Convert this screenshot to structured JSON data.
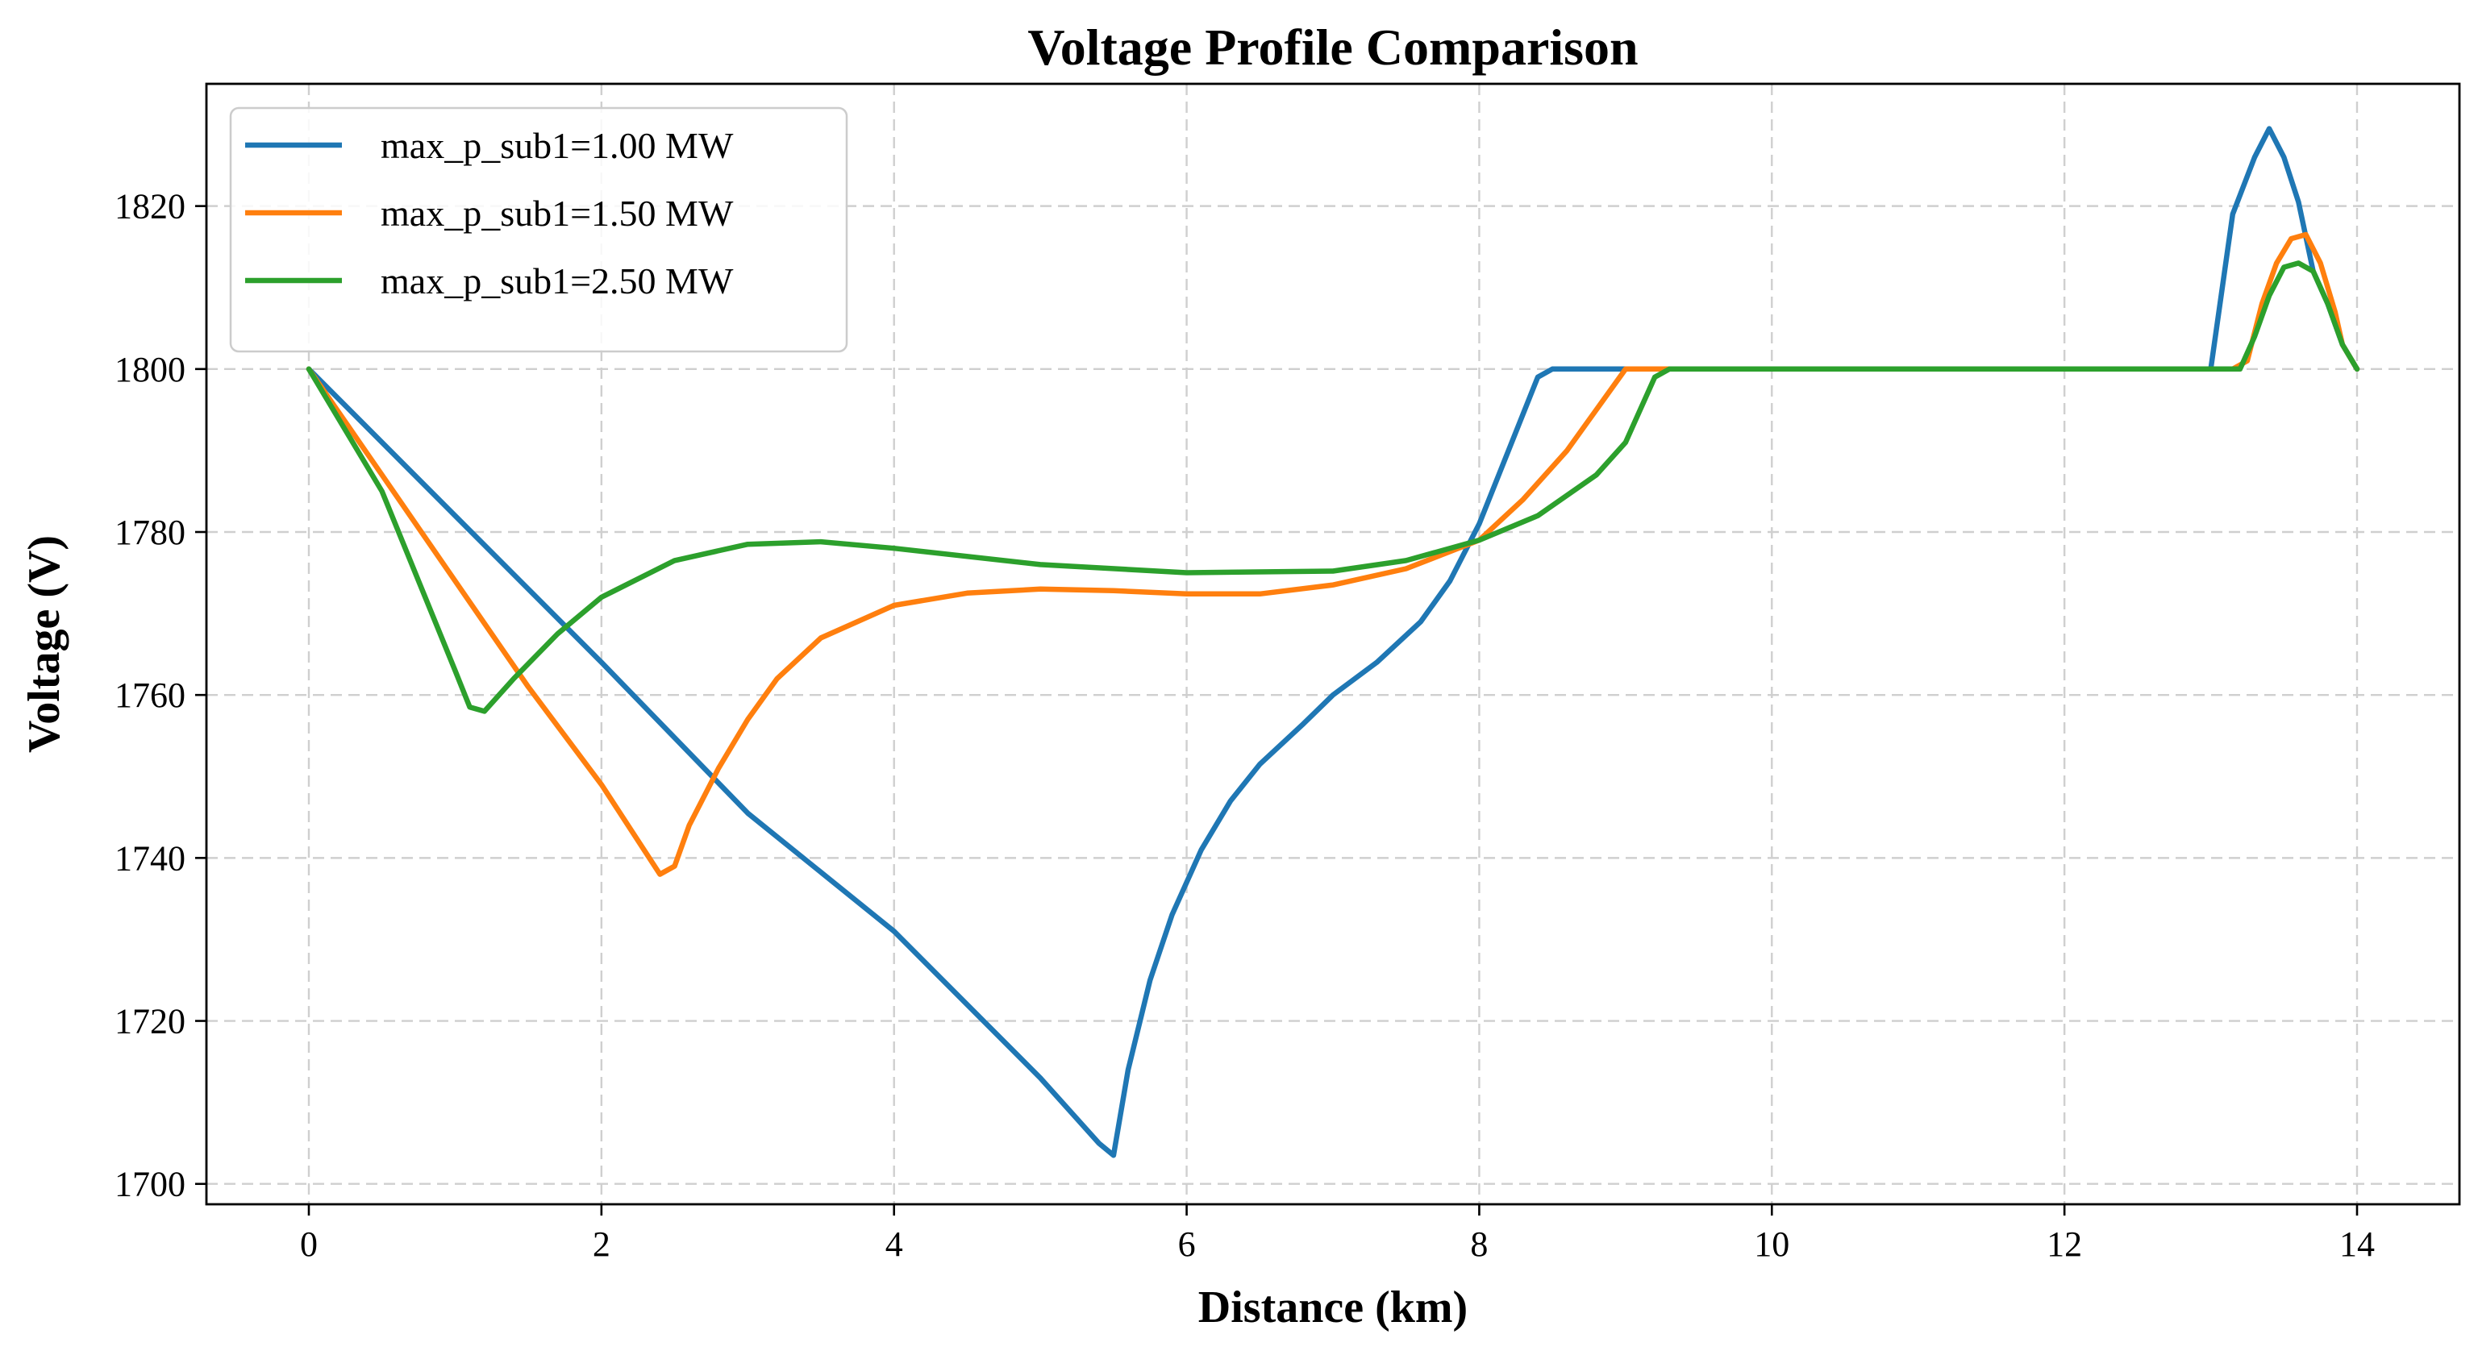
{
  "chart_data": {
    "type": "line",
    "title": "Voltage Profile Comparison",
    "xlabel": "Distance (km)",
    "ylabel": "Voltage (V)",
    "xlim": [
      -0.7,
      14.7
    ],
    "ylim": [
      1697.5,
      1835
    ],
    "xticks": [
      0,
      2,
      4,
      6,
      8,
      10,
      12,
      14
    ],
    "yticks": [
      1700,
      1720,
      1740,
      1760,
      1780,
      1800,
      1820
    ],
    "grid": true,
    "legend_position": "top-left",
    "series": [
      {
        "name": "max_p_sub1=1.00 MW",
        "color": "#1f77b4",
        "points": [
          [
            0,
            1800
          ],
          [
            1,
            1782
          ],
          [
            2,
            1764
          ],
          [
            3,
            1745.5
          ],
          [
            4,
            1731
          ],
          [
            5,
            1713
          ],
          [
            5.4,
            1705
          ],
          [
            5.5,
            1703.5
          ],
          [
            5.6,
            1714
          ],
          [
            5.75,
            1725
          ],
          [
            5.9,
            1733
          ],
          [
            6.1,
            1741
          ],
          [
            6.3,
            1747
          ],
          [
            6.5,
            1751.5
          ],
          [
            6.8,
            1756.5
          ],
          [
            7.0,
            1760
          ],
          [
            7.3,
            1764
          ],
          [
            7.6,
            1769
          ],
          [
            7.8,
            1774
          ],
          [
            8.0,
            1781
          ],
          [
            8.2,
            1790
          ],
          [
            8.4,
            1799
          ],
          [
            8.5,
            1800
          ],
          [
            10,
            1800
          ],
          [
            12,
            1800
          ],
          [
            13.0,
            1800
          ],
          [
            13.15,
            1819
          ],
          [
            13.3,
            1826
          ],
          [
            13.4,
            1829.5
          ],
          [
            13.5,
            1826
          ],
          [
            13.6,
            1820.5
          ],
          [
            13.7,
            1812
          ],
          [
            13.8,
            1808
          ],
          [
            13.9,
            1803
          ],
          [
            14.0,
            1800
          ]
        ]
      },
      {
        "name": "max_p_sub1=1.50 MW",
        "color": "#ff7f0e",
        "points": [
          [
            0,
            1800
          ],
          [
            0.5,
            1787
          ],
          [
            1.0,
            1774
          ],
          [
            1.5,
            1761
          ],
          [
            2.0,
            1749
          ],
          [
            2.4,
            1738
          ],
          [
            2.5,
            1739
          ],
          [
            2.6,
            1744
          ],
          [
            2.8,
            1751
          ],
          [
            3.0,
            1757
          ],
          [
            3.2,
            1762
          ],
          [
            3.5,
            1767
          ],
          [
            4.0,
            1771
          ],
          [
            4.5,
            1772.5
          ],
          [
            5.0,
            1773
          ],
          [
            5.5,
            1772.8
          ],
          [
            6.0,
            1772.4
          ],
          [
            6.5,
            1772.4
          ],
          [
            7.0,
            1773.5
          ],
          [
            7.5,
            1775.5
          ],
          [
            8.0,
            1779
          ],
          [
            8.3,
            1784
          ],
          [
            8.6,
            1790
          ],
          [
            8.8,
            1795
          ],
          [
            9.0,
            1800
          ],
          [
            10,
            1800
          ],
          [
            12,
            1800
          ],
          [
            13.15,
            1800
          ],
          [
            13.25,
            1801
          ],
          [
            13.35,
            1808
          ],
          [
            13.45,
            1813
          ],
          [
            13.55,
            1816
          ],
          [
            13.65,
            1816.5
          ],
          [
            13.75,
            1813
          ],
          [
            13.85,
            1807
          ],
          [
            13.9,
            1803
          ],
          [
            14.0,
            1800
          ]
        ]
      },
      {
        "name": "max_p_sub1=2.50 MW",
        "color": "#2ca02c",
        "points": [
          [
            0,
            1800
          ],
          [
            0.5,
            1785
          ],
          [
            1.0,
            1763
          ],
          [
            1.1,
            1758.5
          ],
          [
            1.2,
            1758
          ],
          [
            1.4,
            1762
          ],
          [
            1.7,
            1767.5
          ],
          [
            2.0,
            1772
          ],
          [
            2.5,
            1776.5
          ],
          [
            3.0,
            1778.5
          ],
          [
            3.5,
            1778.8
          ],
          [
            4.0,
            1778
          ],
          [
            5.0,
            1776
          ],
          [
            6.0,
            1775
          ],
          [
            7.0,
            1775.2
          ],
          [
            7.5,
            1776.5
          ],
          [
            8.0,
            1779
          ],
          [
            8.4,
            1782
          ],
          [
            8.8,
            1787
          ],
          [
            9.0,
            1791
          ],
          [
            9.2,
            1799
          ],
          [
            9.3,
            1800
          ],
          [
            10,
            1800
          ],
          [
            12,
            1800
          ],
          [
            13.2,
            1800
          ],
          [
            13.3,
            1804
          ],
          [
            13.4,
            1809
          ],
          [
            13.5,
            1812.5
          ],
          [
            13.6,
            1813
          ],
          [
            13.7,
            1812
          ],
          [
            13.8,
            1808
          ],
          [
            13.9,
            1803
          ],
          [
            14.0,
            1800
          ]
        ]
      }
    ]
  }
}
